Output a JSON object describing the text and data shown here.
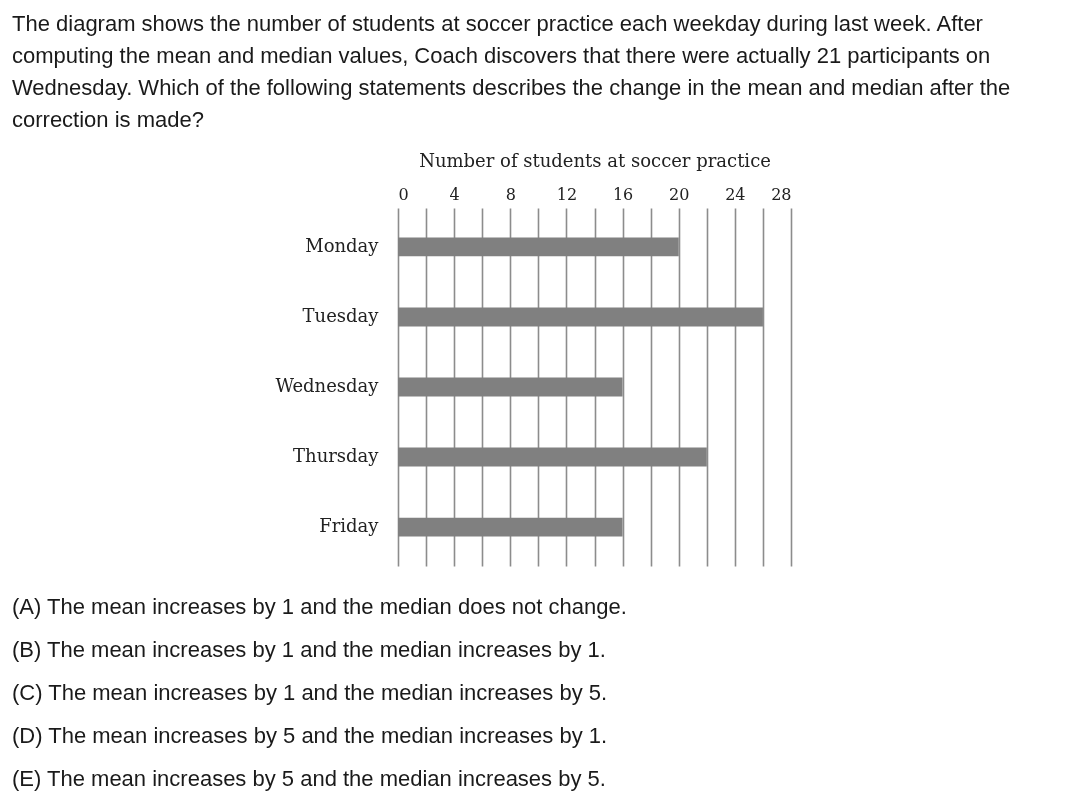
{
  "chart_data": {
    "type": "bar",
    "orientation": "horizontal",
    "title": "The diagram shows the number of students at soccer practice each weekday during last week. After computing the mean and median values, Coach discovers that there were actually 21 participants on Wednesday. Which of the following statements describes the change in the mean and median after the correction is made?",
    "xlabel": "Number of students at soccer practice",
    "categories": [
      "Monday",
      "Tuesday",
      "Wednesday",
      "Thursday",
      "Friday"
    ],
    "values": [
      20,
      26,
      16,
      22,
      16
    ],
    "color": "#808080",
    "xlim": [
      0,
      28
    ],
    "xticks": [
      0,
      {
        "value": 2,
        "label": null
      },
      4,
      {
        "value": 6,
        "label": null
      },
      8,
      {
        "value": 10,
        "label": null
      },
      12,
      {
        "value": 14,
        "label": null
      },
      16,
      {
        "value": 18,
        "label": null
      },
      20,
      {
        "value": 22,
        "label": null
      },
      24,
      {
        "value": 26,
        "label": null
      },
      28
    ],
    "grid": "x",
    "annotations": [
      "(A) The mean increases by 1 and the median does not change.",
      "(B) The mean increases by 1 and the median increases by 1.",
      "(C) The mean increases by 1 and the median increases by 5.",
      "(D) The mean increases by 5 and the median increases by 1.",
      "(E) The mean increases by 5 and the median increases by 5."
    ]
  }
}
